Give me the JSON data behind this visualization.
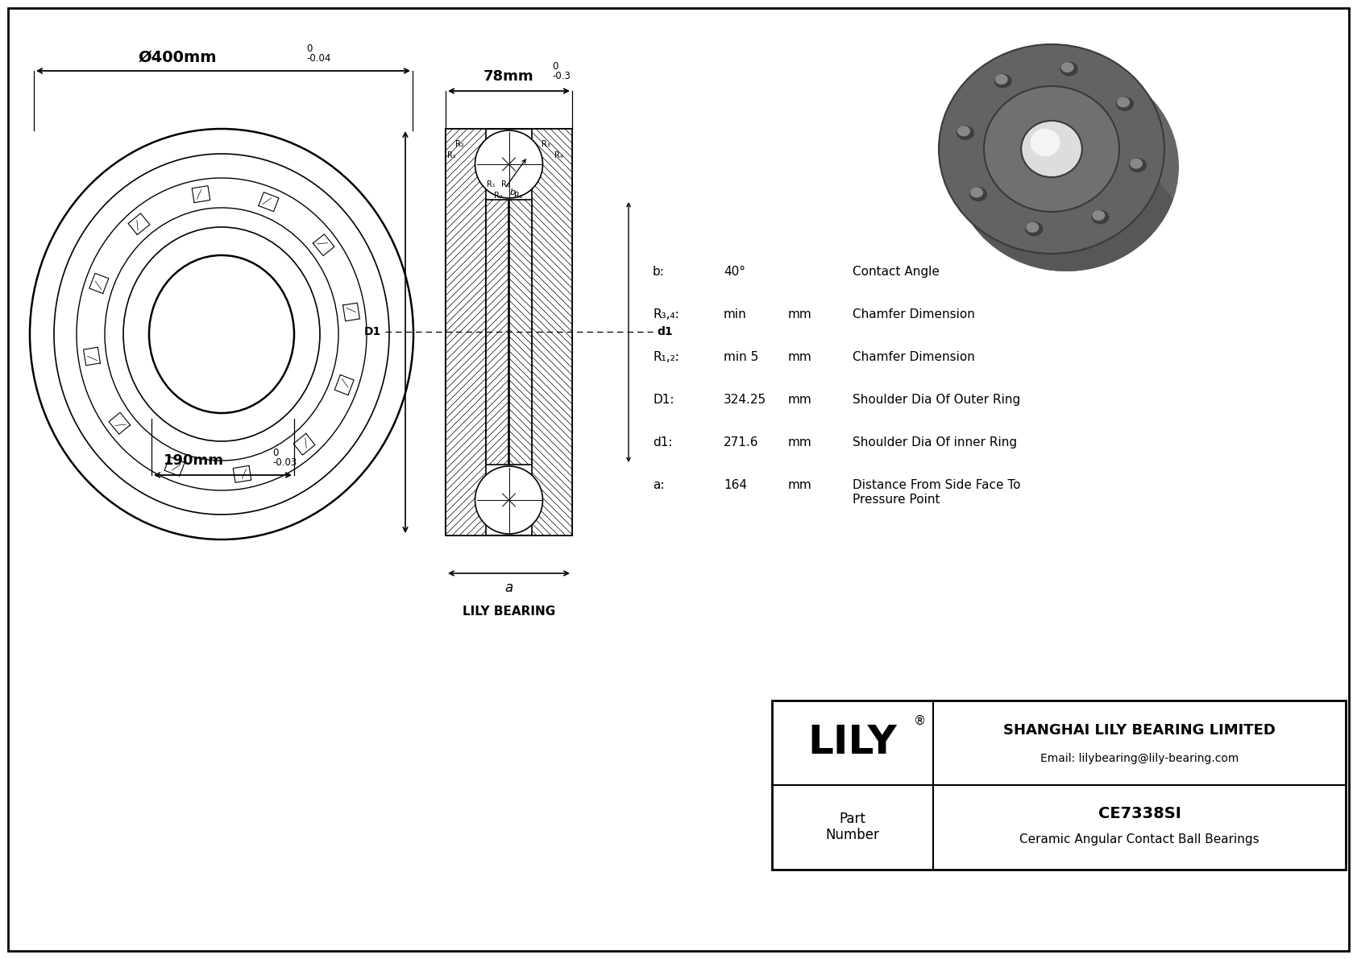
{
  "line_color": "#000000",
  "outer_diam_text": "Ø400mm",
  "outer_tol_upper": "0",
  "outer_tol_lower": "-0.04",
  "inner_diam_text": "190mm",
  "inner_tol_upper": "0",
  "inner_tol_lower": "-0.03",
  "width_text": "78mm",
  "width_tol_upper": "0",
  "width_tol_lower": "-0.3",
  "specs": [
    {
      "sym": "b:",
      "val": "40°",
      "unit": "",
      "desc": "Contact Angle"
    },
    {
      "sym": "R₃,₄:",
      "val": "min",
      "unit": "mm",
      "desc": "Chamfer Dimension"
    },
    {
      "sym": "R₁,₂:",
      "val": "min 5",
      "unit": "mm",
      "desc": "Chamfer Dimension"
    },
    {
      "sym": "D1:",
      "val": "324.25",
      "unit": "mm",
      "desc": "Shoulder Dia Of Outer Ring"
    },
    {
      "sym": "d1:",
      "val": "271.6",
      "unit": "mm",
      "desc": "Shoulder Dia Of inner Ring"
    },
    {
      "sym": "a:",
      "val": "164",
      "unit": "mm",
      "desc": "Distance From Side Face To\nPressure Point"
    }
  ],
  "lily_bearing": "LILY BEARING",
  "company": "SHANGHAI LILY BEARING LIMITED",
  "email": "Email: lilybearing@lily-bearing.com",
  "logo": "LILY",
  "logo_reg": "®",
  "part_no": "CE7338SI",
  "part_desc": "Ceramic Angular Contact Ball Bearings",
  "part_label": "Part\nNumber",
  "gray_dark": "#555555",
  "gray_mid": "#777777",
  "gray_light": "#aaaaaa",
  "gray_inner": "#cccccc",
  "gray_body": "#636363"
}
